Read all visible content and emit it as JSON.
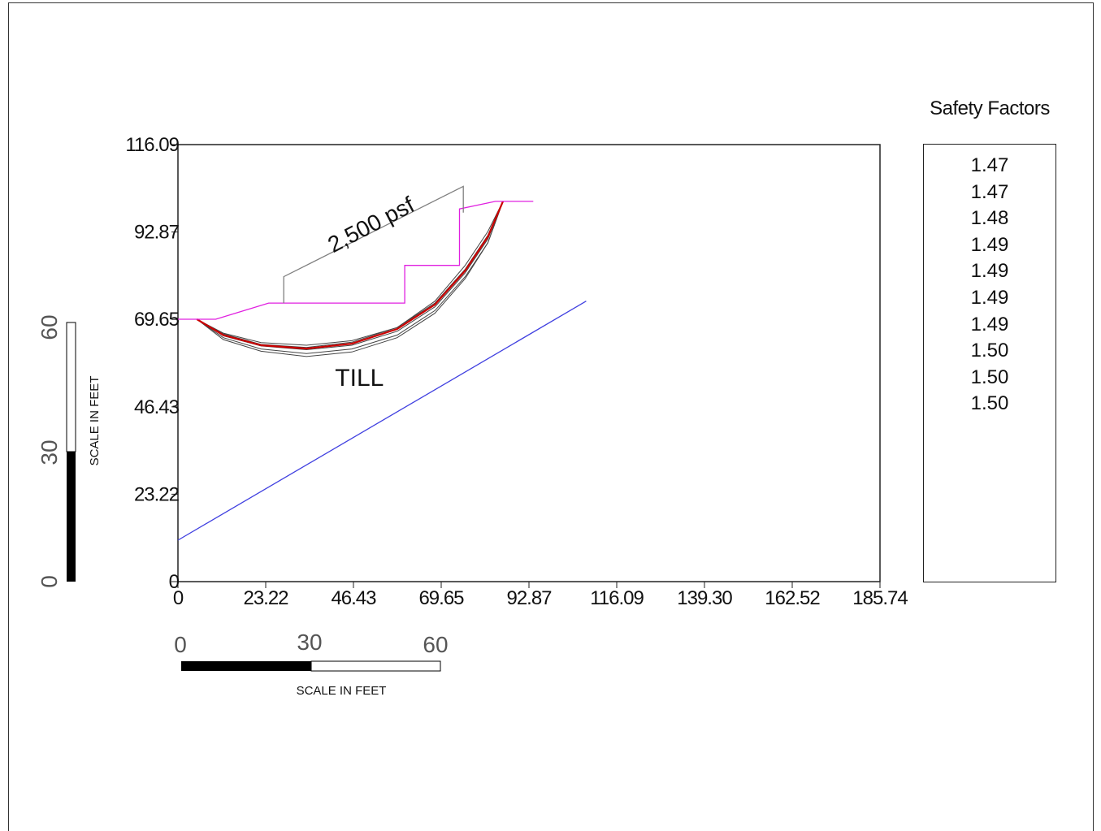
{
  "chart_data": {
    "type": "line",
    "title": "",
    "xlabel": "",
    "ylabel": "",
    "xlim": [
      0,
      185.74
    ],
    "ylim": [
      0,
      116.09
    ],
    "x_ticks": [
      "0",
      "23.22",
      "46.43",
      "69.65",
      "92.87",
      "116.09",
      "139.30",
      "162.52",
      "185.74"
    ],
    "y_ticks": [
      "0",
      "23.22",
      "46.43",
      "69.65",
      "92.87",
      "116.09"
    ],
    "series": [
      {
        "color": "#e020e0",
        "points": [
          [
            0,
            69.7
          ],
          [
            10,
            69.7
          ],
          [
            24,
            74
          ],
          [
            60,
            74
          ],
          [
            60,
            84
          ],
          [
            74.5,
            84
          ],
          [
            74.5,
            99
          ],
          [
            84,
            101
          ],
          [
            94,
            101
          ]
        ]
      },
      {
        "color": "#808080",
        "points": [
          [
            28,
            74
          ],
          [
            28,
            81
          ],
          [
            75.5,
            105
          ],
          [
            75.5,
            98
          ]
        ]
      },
      {
        "color": "#4040e0",
        "points": [
          [
            0,
            11
          ],
          [
            108,
            74.5
          ]
        ]
      }
    ],
    "slip_surfaces": [
      {
        "color": "#444444",
        "points": [
          [
            5,
            69.7
          ],
          [
            12,
            66
          ],
          [
            22,
            63.5
          ],
          [
            34,
            62.8
          ],
          [
            46,
            64
          ],
          [
            58,
            67.5
          ],
          [
            68,
            74
          ],
          [
            76,
            83
          ],
          [
            82,
            92
          ],
          [
            86,
            101
          ]
        ]
      },
      {
        "color": "#444444",
        "points": [
          [
            5,
            69.7
          ],
          [
            12,
            65.3
          ],
          [
            22,
            62.6
          ],
          [
            34,
            61.6
          ],
          [
            46,
            62.8
          ],
          [
            58,
            66.5
          ],
          [
            68,
            73
          ],
          [
            76,
            82
          ],
          [
            82,
            91
          ],
          [
            86,
            101
          ]
        ]
      },
      {
        "color": "#444444",
        "points": [
          [
            5,
            69.7
          ],
          [
            12,
            64.8
          ],
          [
            22,
            61.8
          ],
          [
            34,
            60.6
          ],
          [
            46,
            61.8
          ],
          [
            58,
            65.5
          ],
          [
            68,
            72
          ],
          [
            76,
            81
          ],
          [
            82,
            90
          ],
          [
            86,
            101
          ]
        ]
      },
      {
        "color": "#444444",
        "points": [
          [
            5,
            69.7
          ],
          [
            12,
            64.3
          ],
          [
            22,
            61.2
          ],
          [
            34,
            59.8
          ],
          [
            46,
            61
          ],
          [
            58,
            64.8
          ],
          [
            68,
            71.3
          ],
          [
            76,
            80.5
          ],
          [
            82,
            90
          ],
          [
            86,
            101
          ]
        ]
      },
      {
        "color": "#444444",
        "points": [
          [
            5,
            69.7
          ],
          [
            12,
            65.8
          ],
          [
            22,
            63
          ],
          [
            34,
            62.2
          ],
          [
            46,
            63.6
          ],
          [
            58,
            67.5
          ],
          [
            68,
            74.5
          ],
          [
            76,
            84
          ],
          [
            82,
            93
          ],
          [
            86,
            101
          ]
        ]
      },
      {
        "color": "#cc0000",
        "points": [
          [
            5,
            69.7
          ],
          [
            12,
            65.5
          ],
          [
            22,
            62.8
          ],
          [
            34,
            61.9
          ],
          [
            46,
            63.2
          ],
          [
            58,
            67.1
          ],
          [
            68,
            73.6
          ],
          [
            76,
            82.6
          ],
          [
            82,
            91.6
          ],
          [
            86,
            101
          ]
        ]
      }
    ],
    "annotations": [
      {
        "text": "2,500 psf",
        "x": 52,
        "y": 93
      },
      {
        "text": "TILL",
        "x": 48,
        "y": 52
      }
    ]
  },
  "safety_factors": {
    "title": "Safety Factors",
    "values": [
      "1.47",
      "1.47",
      "1.48",
      "1.49",
      "1.49",
      "1.49",
      "1.49",
      "1.50",
      "1.50",
      "1.50"
    ]
  },
  "scale_bars": {
    "horizontal": {
      "labels": [
        "0",
        "30",
        "60"
      ],
      "caption": "SCALE IN FEET"
    },
    "vertical": {
      "labels": [
        "0",
        "30",
        "60"
      ],
      "caption": "SCALE IN FEET"
    }
  }
}
